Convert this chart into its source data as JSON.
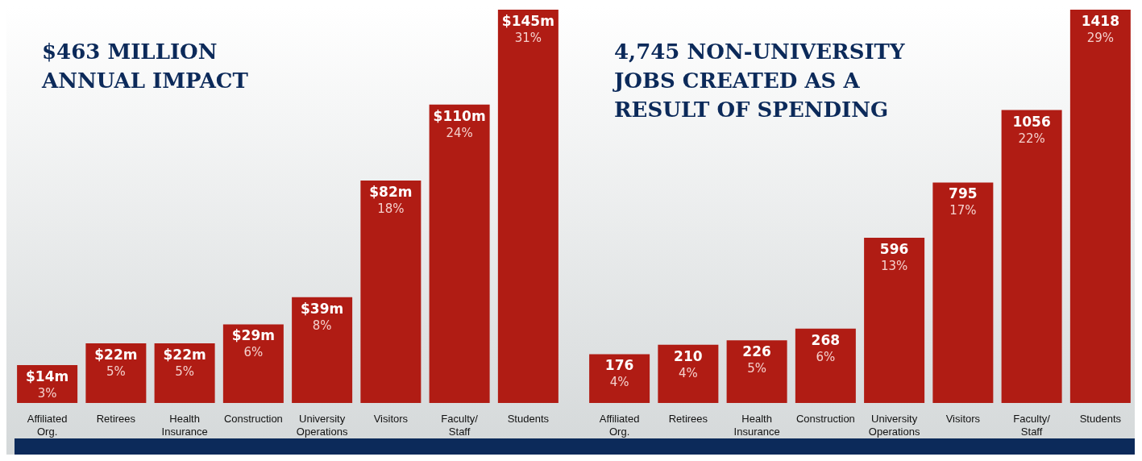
{
  "chart_data": [
    {
      "type": "bar",
      "title": "$463 MILLION ANNUAL IMPACT",
      "categories": [
        "Affiliated Org.",
        "Retirees",
        "Health Insurance",
        "Construction",
        "University Operations",
        "Visitors",
        "Faculty/ Staff",
        "Students"
      ],
      "series": [
        {
          "color": "#b01c14",
          "values": [
            14,
            22,
            22,
            29,
            39,
            82,
            110,
            145
          ],
          "value_labels": [
            "$14m",
            "$22m",
            "$22m",
            "$29m",
            "$39m",
            "$82m",
            "$110m",
            "$145m"
          ]
        }
      ],
      "annotations": [
        {
          "text": "3%",
          "x": "Affiliated Org.",
          "y": 14
        },
        {
          "text": "5%",
          "x": "Retirees",
          "y": 22
        },
        {
          "text": "5%",
          "x": "Health Insurance",
          "y": 22
        },
        {
          "text": "6%",
          "x": "Construction",
          "y": 29
        },
        {
          "text": "8%",
          "x": "University Operations",
          "y": 39
        },
        {
          "text": "18%",
          "x": "Visitors",
          "y": 82
        },
        {
          "text": "24%",
          "x": "Faculty/ Staff",
          "y": 110
        },
        {
          "text": "31%",
          "x": "Students",
          "y": 145
        }
      ],
      "legend": false,
      "grid": false
    },
    {
      "type": "bar",
      "title": "4,745 NON-UNIVERSITY JOBS CREATED AS A RESULT OF SPENDING",
      "categories": [
        "Affiliated Org.",
        "Retirees",
        "Health Insurance",
        "Construction",
        "University Operations",
        "Visitors",
        "Faculty/ Staff",
        "Students"
      ],
      "series": [
        {
          "color": "#b01c14",
          "values": [
            176,
            210,
            226,
            268,
            596,
            795,
            1056,
            1418
          ]
        }
      ],
      "data_labels": true,
      "annotations": [
        {
          "text": "4%",
          "x": "Affiliated Org.",
          "y": 176
        },
        {
          "text": "4%",
          "x": "Retirees",
          "y": 210
        },
        {
          "text": "5%",
          "x": "Health Insurance",
          "y": 226
        },
        {
          "text": "6%",
          "x": "Construction",
          "y": 268
        },
        {
          "text": "13%",
          "x": "University Operations",
          "y": 596
        },
        {
          "text": "17%",
          "x": "Visitors",
          "y": 795
        },
        {
          "text": "22%",
          "x": "Faculty/ Staff",
          "y": 1056
        },
        {
          "text": "29%",
          "x": "Students",
          "y": 1418
        }
      ],
      "legend": false,
      "grid": false
    }
  ]
}
